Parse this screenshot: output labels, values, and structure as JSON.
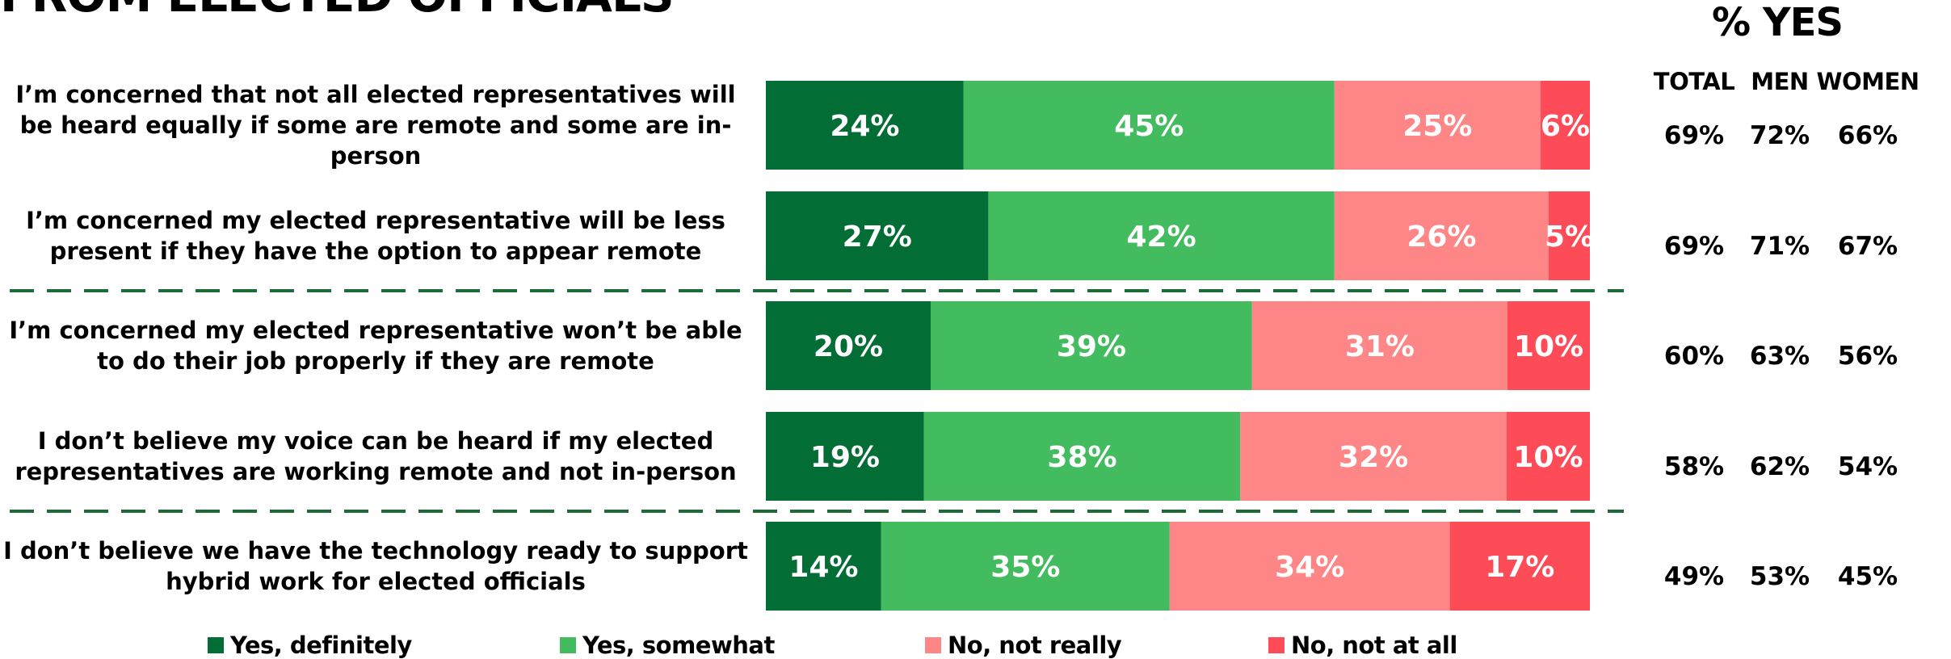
{
  "heading": "FROM ELECTED OFFICIALS",
  "yes_header": "% YES",
  "columns": [
    "TOTAL",
    "MEN",
    "WOMEN"
  ],
  "colors": {
    "yes_definitely": "#036d36",
    "yes_somewhat": "#43bc60",
    "no_not_really": "#fe8687",
    "no_not_at_all": "#fd4b57",
    "divider": "#1e6b38"
  },
  "chart_data": {
    "type": "bar",
    "orientation": "horizontal",
    "stacked": true,
    "categories": [
      "I’m concerned that not all elected representatives will be heard equally if some are remote and some are in-person",
      "I’m concerned my elected representative will be less present if they have the option to appear remote",
      "I’m concerned my elected representative won’t be able to do their job properly if they are remote",
      "I don’t believe my voice can be heard if my elected representatives are working remote and not in-person",
      "I don’t believe we have the technology ready to support hybrid work for elected officials"
    ],
    "category_lines": [
      [
        "I’m concerned that not all elected representatives will",
        "be heard equally if some are remote and some are in-",
        "person"
      ],
      [
        "I’m concerned my elected representative will be less",
        "present if they have the option to appear remote"
      ],
      [
        "I’m concerned my elected representative won’t be able",
        "to do their job properly if they are remote"
      ],
      [
        "I don’t believe my voice can be heard if my elected",
        "representatives are working remote and not in-person"
      ],
      [
        "I don’t believe we have the technology ready to support",
        "hybrid work for elected officials"
      ]
    ],
    "series": [
      {
        "name": "Yes, definitely",
        "color": "#036d36",
        "values": [
          24,
          27,
          20,
          19,
          14
        ]
      },
      {
        "name": "Yes, somewhat",
        "color": "#43bc60",
        "values": [
          45,
          42,
          39,
          38,
          35
        ]
      },
      {
        "name": "No, not really",
        "color": "#fe8687",
        "values": [
          25,
          26,
          31,
          32,
          34
        ]
      },
      {
        "name": "No, not at all",
        "color": "#fd4b57",
        "values": [
          6,
          5,
          10,
          10,
          17
        ]
      }
    ],
    "yes_totals": {
      "TOTAL": [
        "69%",
        "69%",
        "60%",
        "58%",
        "49%"
      ],
      "MEN": [
        "72%",
        "71%",
        "63%",
        "62%",
        "53%"
      ],
      "WOMEN": [
        "66%",
        "67%",
        "56%",
        "54%",
        "45%"
      ]
    },
    "dividers_after": [
      1,
      3
    ],
    "legend_position": "bottom",
    "unit": "%"
  }
}
